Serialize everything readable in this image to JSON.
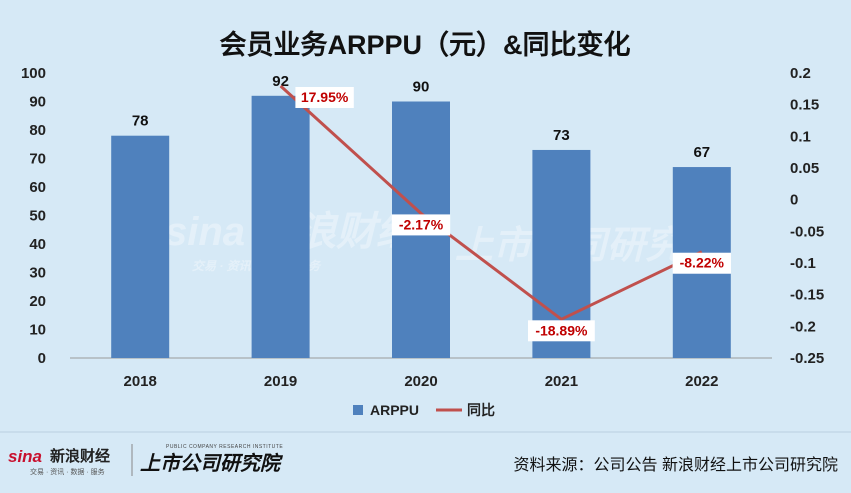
{
  "chart_data": {
    "type": "bar+line",
    "title": "会员业务ARPPU（元）&同比变化",
    "categories": [
      "2018",
      "2019",
      "2020",
      "2021",
      "2022"
    ],
    "series": [
      {
        "name": "ARPPU",
        "type": "bar",
        "axis": "left",
        "values": [
          78,
          92,
          90,
          73,
          67
        ],
        "labels": [
          "78",
          "92",
          "90",
          "73",
          "67"
        ],
        "color": "#4f81bd"
      },
      {
        "name": "同比",
        "type": "line",
        "axis": "right",
        "values": [
          null,
          0.1795,
          -0.0217,
          -0.1889,
          -0.0822
        ],
        "labels": [
          "",
          "17.95%",
          "-2.17%",
          "-18.89%",
          "-8.22%"
        ],
        "color": "#c0504d"
      }
    ],
    "y_left": {
      "min": 0,
      "max": 100,
      "step": 10,
      "ticks": [
        "0",
        "10",
        "20",
        "30",
        "40",
        "50",
        "60",
        "70",
        "80",
        "90",
        "100"
      ]
    },
    "y_right": {
      "min": -0.25,
      "max": 0.2,
      "step": 0.05,
      "ticks": [
        "-0.25",
        "-0.2",
        "-0.15",
        "-0.1",
        "-0.05",
        "0",
        "0.05",
        "0.1",
        "0.15",
        "0.2"
      ]
    },
    "legend_position": "bottom",
    "grid": false
  },
  "watermark": {
    "brand_left": "sina 新浪财经",
    "brand_left_sub": "交易 · 资讯 · 数据 · 服务",
    "brand_right": "上市公司研究院"
  },
  "footer": {
    "brand_sina": "sina",
    "brand_cn": "新浪财经",
    "brand_sub": "交易 · 资讯 · 数据 · 服务",
    "institute": "上市公司研究院",
    "institute_en": "PUBLIC COMPANY RESEARCH INSTITUTE",
    "source": "资料来源：公司公告 新浪财经上市公司研究院"
  },
  "colors": {
    "background": "#d6e9f6",
    "bar": "#4f81bd",
    "line": "#c0504d",
    "pct_text": "#c00000"
  }
}
